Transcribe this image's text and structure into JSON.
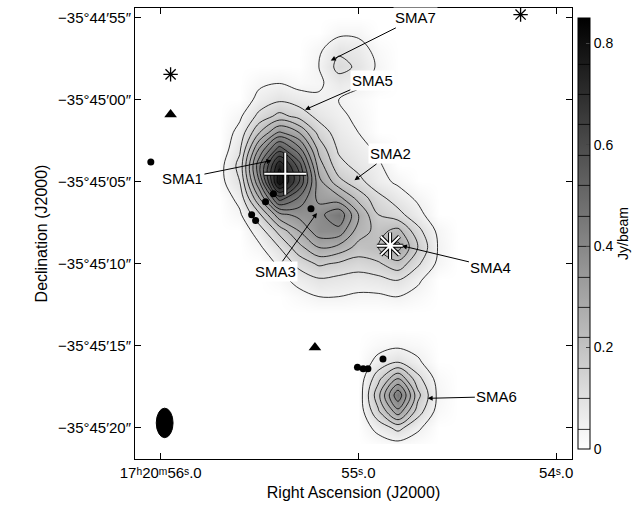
{
  "chart_data": {
    "type": "contour",
    "x_label": "Right Ascension (J2000)",
    "y_label": "Declination (J2000)",
    "xlim": [
      56.13,
      53.92
    ],
    "xticks": [
      {
        "value": 56.0,
        "label": "17ʰ20ᵐ56ˢ.0"
      },
      {
        "value": 55.0,
        "label": "55ˢ.0"
      },
      {
        "value": 54.0,
        "label": "54ˢ.0"
      }
    ],
    "ylim": [
      -21.9,
      5.6
    ],
    "yticks": [
      {
        "value": 5,
        "label": "−35°44′55″"
      },
      {
        "value": 0,
        "label": "−35°45′00″"
      },
      {
        "value": -5,
        "label": "−35°45′05″"
      },
      {
        "value": -10,
        "label": "−35°45′10″"
      },
      {
        "value": -15,
        "label": "−35°45′15″"
      },
      {
        "value": -20,
        "label": "−35°45′20″"
      }
    ],
    "grid": false,
    "x": [
      55.7,
      55.6,
      55.5,
      55.4,
      55.3,
      55.2,
      55.1,
      55.0,
      54.9,
      54.8,
      54.7,
      54.6,
      54.5,
      54.4
    ],
    "y": [
      5,
      4,
      3,
      2,
      1,
      0,
      -1,
      -2,
      -3,
      -4,
      -5,
      -6,
      -7,
      -8,
      -9,
      -10,
      -11,
      -12,
      -13,
      -14,
      -15,
      -16,
      -17,
      -18,
      -19,
      -20,
      -21
    ],
    "z": [
      [
        0,
        0,
        0,
        0,
        0,
        0,
        0,
        0,
        0,
        0,
        0,
        0,
        0,
        0
      ],
      [
        0,
        0,
        0,
        0,
        0,
        0,
        0.03,
        0.03,
        0,
        0,
        0,
        0,
        0,
        0
      ],
      [
        0,
        0,
        0,
        0,
        0,
        0.03,
        0.09,
        0.07,
        0.02,
        0,
        0,
        0,
        0,
        0
      ],
      [
        0,
        0,
        0,
        0,
        0,
        0.04,
        0.12,
        0.09,
        0.03,
        0,
        0,
        0,
        0,
        0
      ],
      [
        0,
        0,
        0.03,
        0.04,
        0.02,
        0.03,
        0.07,
        0.05,
        0.02,
        0,
        0,
        0,
        0,
        0
      ],
      [
        0,
        0,
        0.06,
        0.09,
        0.07,
        0.05,
        0.04,
        0.02,
        0,
        0,
        0,
        0,
        0,
        0
      ],
      [
        0,
        0.03,
        0.12,
        0.18,
        0.14,
        0.08,
        0.05,
        0.03,
        0,
        0,
        0,
        0,
        0,
        0
      ],
      [
        0,
        0.06,
        0.22,
        0.35,
        0.28,
        0.14,
        0.07,
        0.04,
        0,
        0,
        0,
        0,
        0,
        0
      ],
      [
        0,
        0.09,
        0.35,
        0.55,
        0.42,
        0.2,
        0.09,
        0.06,
        0.03,
        0,
        0,
        0,
        0,
        0
      ],
      [
        0.02,
        0.12,
        0.45,
        0.75,
        0.55,
        0.25,
        0.12,
        0.08,
        0.05,
        0,
        0,
        0,
        0,
        0
      ],
      [
        0.02,
        0.1,
        0.4,
        0.8,
        0.58,
        0.3,
        0.18,
        0.12,
        0.06,
        0.03,
        0,
        0,
        0,
        0
      ],
      [
        0,
        0.06,
        0.28,
        0.55,
        0.45,
        0.32,
        0.3,
        0.2,
        0.12,
        0.07,
        0.03,
        0,
        0,
        0
      ],
      [
        0,
        0.03,
        0.15,
        0.32,
        0.36,
        0.38,
        0.45,
        0.28,
        0.16,
        0.12,
        0.06,
        0,
        0,
        0
      ],
      [
        0,
        0,
        0.07,
        0.18,
        0.28,
        0.38,
        0.38,
        0.25,
        0.2,
        0.24,
        0.12,
        0.03,
        0,
        0
      ],
      [
        0,
        0,
        0.03,
        0.1,
        0.2,
        0.28,
        0.26,
        0.2,
        0.22,
        0.3,
        0.16,
        0.04,
        0,
        0
      ],
      [
        0,
        0,
        0,
        0.05,
        0.12,
        0.17,
        0.15,
        0.13,
        0.15,
        0.2,
        0.11,
        0.03,
        0,
        0
      ],
      [
        0,
        0,
        0,
        0.02,
        0.06,
        0.09,
        0.08,
        0.07,
        0.08,
        0.1,
        0.05,
        0,
        0,
        0
      ],
      [
        0,
        0,
        0,
        0,
        0.02,
        0.04,
        0.04,
        0.03,
        0.03,
        0.04,
        0.02,
        0,
        0,
        0
      ],
      [
        0,
        0,
        0,
        0,
        0,
        0,
        0,
        0,
        0,
        0,
        0,
        0,
        0,
        0
      ],
      [
        0,
        0,
        0,
        0,
        0,
        0,
        0,
        0,
        0,
        0,
        0,
        0,
        0,
        0
      ],
      [
        0,
        0,
        0,
        0,
        0,
        0,
        0,
        0,
        0.02,
        0.03,
        0.02,
        0,
        0,
        0
      ],
      [
        0,
        0,
        0,
        0,
        0,
        0,
        0,
        0,
        0.06,
        0.1,
        0.05,
        0,
        0,
        0
      ],
      [
        0,
        0,
        0,
        0,
        0,
        0,
        0,
        0,
        0.14,
        0.28,
        0.12,
        0.02,
        0,
        0
      ],
      [
        0,
        0,
        0,
        0,
        0,
        0,
        0,
        0,
        0.2,
        0.45,
        0.18,
        0.03,
        0,
        0
      ],
      [
        0,
        0,
        0,
        0,
        0,
        0,
        0,
        0,
        0.15,
        0.32,
        0.13,
        0.02,
        0,
        0
      ],
      [
        0,
        0,
        0,
        0,
        0,
        0,
        0,
        0,
        0.06,
        0.12,
        0.05,
        0,
        0,
        0
      ],
      [
        0,
        0,
        0,
        0,
        0,
        0,
        0,
        0,
        0.01,
        0.02,
        0.01,
        0,
        0,
        0
      ]
    ],
    "contour_levels": {
      "start": 0.04,
      "end": 0.8,
      "size": 0.06
    },
    "colorbar": {
      "label": "Jy/beam",
      "range": [
        0,
        0.85
      ],
      "ticks": [
        0,
        0.2,
        0.4,
        0.6,
        0.8
      ]
    },
    "markers": [
      {
        "marker": "cross",
        "color": "white",
        "x": [
          55.37
        ],
        "y": [
          -4.5
        ]
      },
      {
        "marker": "asterisk",
        "color": "white",
        "x": [
          54.84
        ],
        "y": [
          -8.9
        ]
      },
      {
        "marker": "asterisk",
        "color": "black",
        "x": [
          55.95,
          54.18
        ],
        "y": [
          1.55,
          5.2
        ]
      },
      {
        "marker": "triangle",
        "color": "black",
        "x": [
          55.95,
          55.22
        ],
        "y": [
          -0.9,
          -15.1
        ]
      },
      {
        "marker": "circle",
        "color": "black",
        "x": [
          56.05,
          55.43,
          55.47,
          55.54,
          55.52,
          55.24,
          55.005,
          54.976,
          54.952,
          54.876
        ],
        "y": [
          -3.79,
          -5.73,
          -6.21,
          -7.0,
          -7.36,
          -6.64,
          -16.3,
          -16.4,
          -16.4,
          -15.8
        ]
      }
    ],
    "beam": {
      "x": 55.98,
      "y": -19.7,
      "width": 0.085,
      "height": 1.8,
      "color": "black"
    },
    "annotations": [
      {
        "text": "SMA7",
        "x": 55.14,
        "y": 2.4,
        "text_x": 54.71,
        "text_y": 5.0
      },
      {
        "text": "SMA5",
        "x": 55.27,
        "y": -0.6,
        "text_x": 54.93,
        "text_y": 1.2
      },
      {
        "text": "SMA1",
        "x": 55.44,
        "y": -3.7,
        "text_x": 55.89,
        "text_y": -4.8
      },
      {
        "text": "SMA2",
        "x": 55.02,
        "y": -4.9,
        "text_x": 54.84,
        "text_y": -3.3
      },
      {
        "text": "SMA3",
        "x": 55.21,
        "y": -6.9,
        "text_x": 55.42,
        "text_y": -10.45
      },
      {
        "text": "SMA4",
        "x": 54.78,
        "y": -8.9,
        "text_x": 54.33,
        "text_y": -10.2
      },
      {
        "text": "SMA6",
        "x": 54.65,
        "y": -18.2,
        "text_x": 54.3,
        "text_y": -18.1
      }
    ]
  }
}
